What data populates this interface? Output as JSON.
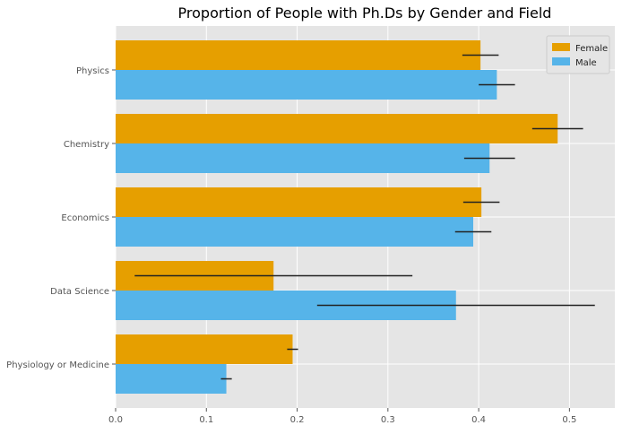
{
  "chart_data": {
    "type": "bar",
    "orientation": "horizontal",
    "title": "Proportion of People with Ph.Ds by Gender and Field",
    "xlabel": "",
    "ylabel": "",
    "xlim": [
      0,
      0.55
    ],
    "xticks": [
      0.0,
      0.1,
      0.2,
      0.3,
      0.4,
      0.5
    ],
    "xtick_labels": [
      "0.0",
      "0.1",
      "0.2",
      "0.3",
      "0.4",
      "0.5"
    ],
    "grid": true,
    "legend_position": "top-right",
    "categories": [
      "Physics",
      "Chemistry",
      "Economics",
      "Data Science",
      "Physiology or Medicine"
    ],
    "series": [
      {
        "name": "Female",
        "color": "#E69F00",
        "values": [
          0.402,
          0.487,
          0.403,
          0.174,
          0.195
        ],
        "errors": [
          0.02,
          0.028,
          0.02,
          0.153,
          0.006
        ]
      },
      {
        "name": "Male",
        "color": "#56B4E9",
        "values": [
          0.42,
          0.412,
          0.394,
          0.375,
          0.122
        ],
        "errors": [
          0.02,
          0.028,
          0.02,
          0.153,
          0.006
        ]
      }
    ],
    "background_color": "#E5E5E5",
    "grid_color": "#FFFFFF",
    "errorbar_color": "#222222"
  }
}
